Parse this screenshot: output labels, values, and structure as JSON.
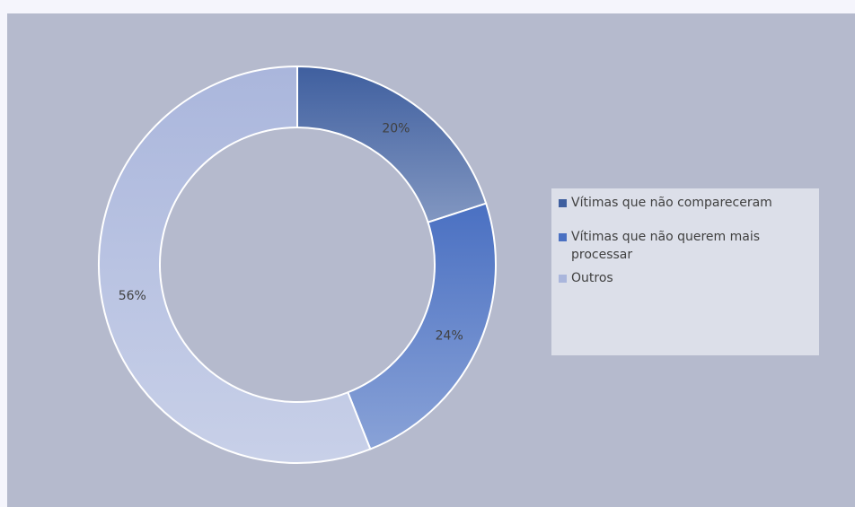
{
  "chart_data": {
    "type": "donut",
    "categories": [
      "Vítimas que não compareceram",
      "Vítimas que não querem mais processar",
      "Outros"
    ],
    "values": [
      20,
      24,
      56
    ],
    "value_labels": [
      "20%",
      "24%",
      "56%"
    ],
    "colors": [
      "#3f5f9f",
      "#4a70c2",
      "#aab6dc"
    ],
    "legend": "right"
  }
}
